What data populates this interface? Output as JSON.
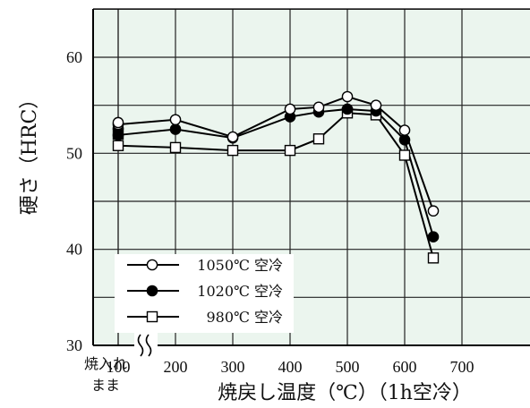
{
  "chart_data": {
    "type": "line",
    "xlabel": "焼戻し温度（℃）（1h空冷）",
    "ylabel": "硬さ（HRC）",
    "xlim": [
      0,
      700
    ],
    "ylim": [
      30,
      65
    ],
    "x_ticks": [
      "100",
      "200",
      "300",
      "400",
      "500",
      "600",
      "700"
    ],
    "y_ticks": [
      "30",
      "40",
      "50",
      "60"
    ],
    "as_quenched_label": [
      "焼入れ",
      "まま"
    ],
    "as_quenched_x": 0,
    "grid": true,
    "axis_break": "x",
    "legend_position": "left",
    "series": [
      {
        "name": "1050℃ 空冷",
        "marker": "circle-open",
        "x": [
          100,
          200,
          300,
          400,
          450,
          500,
          550,
          600,
          650
        ],
        "y": [
          53.0,
          53.5,
          51.7,
          54.6,
          54.8,
          55.9,
          55.0,
          52.4,
          44.0
        ],
        "as_quenched": 53.2
      },
      {
        "name": "1020℃ 空冷",
        "marker": "circle-filled",
        "x": [
          100,
          200,
          300,
          400,
          450,
          500,
          550,
          600,
          650
        ],
        "y": [
          51.9,
          52.5,
          51.6,
          53.8,
          54.3,
          54.6,
          54.4,
          51.4,
          41.3
        ],
        "as_quenched": 52.6
      },
      {
        "name": "980℃ 空冷",
        "marker": "square-open",
        "x": [
          100,
          200,
          300,
          400,
          450,
          500,
          550,
          600,
          650
        ],
        "y": [
          50.8,
          50.6,
          50.3,
          50.3,
          51.5,
          54.2,
          54.0,
          49.8,
          39.1
        ],
        "as_quenched": 52.0
      }
    ]
  }
}
